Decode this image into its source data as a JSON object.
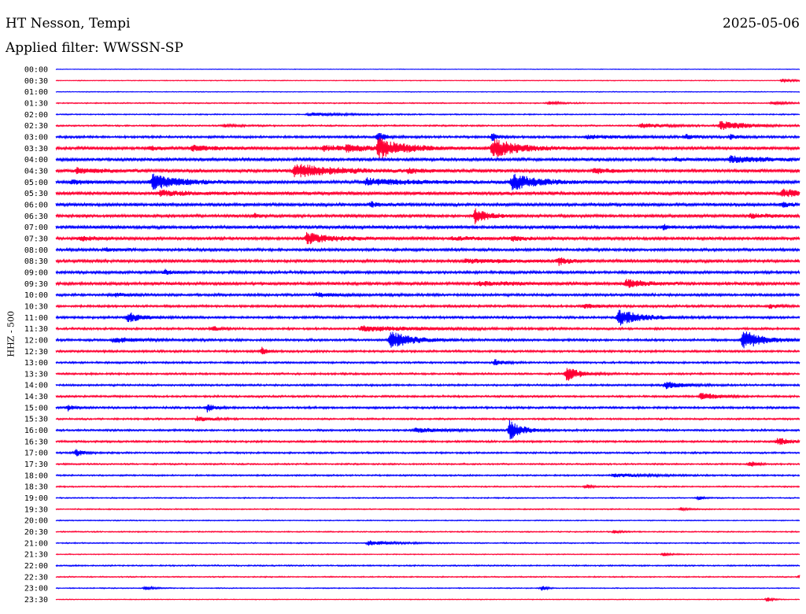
{
  "header": {
    "station": "HT Nesson, Tempi",
    "date": "2025-05-06",
    "filter": "Applied filter: WWSSN-SP"
  },
  "chart_data": {
    "type": "line",
    "title": "HT Nesson, Tempi",
    "subtitle": "Applied filter: WWSSN-SP",
    "ylabel": "HHZ - 500",
    "xlabel": "",
    "grid": false,
    "colors": {
      "even_trace": "#0000ff",
      "odd_trace": "#ff0033"
    },
    "categories": [
      "00:00",
      "00:30",
      "01:00",
      "01:30",
      "02:00",
      "02:30",
      "03:00",
      "03:30",
      "04:00",
      "04:30",
      "05:00",
      "05:30",
      "06:00",
      "06:30",
      "07:00",
      "07:30",
      "08:00",
      "08:30",
      "09:00",
      "09:30",
      "10:00",
      "10:30",
      "11:00",
      "11:30",
      "12:00",
      "12:30",
      "13:00",
      "13:30",
      "14:00",
      "14:30",
      "15:00",
      "15:30",
      "16:00",
      "16:30",
      "17:00",
      "17:30",
      "18:00",
      "18:30",
      "19:00",
      "19:30",
      "20:00",
      "20:30",
      "21:00",
      "21:30",
      "22:00",
      "22:30",
      "23:00",
      "23:30"
    ],
    "x_range_minutes": [
      0,
      30
    ],
    "trace_noise_level": [
      0.3,
      0.4,
      0.4,
      0.6,
      0.6,
      0.8,
      1.2,
      1.6,
      1.6,
      1.7,
      1.6,
      1.8,
      1.6,
      1.5,
      1.6,
      1.5,
      1.4,
      1.5,
      1.4,
      1.5,
      1.3,
      1.2,
      1.2,
      1.1,
      1.2,
      1.1,
      1.0,
      1.0,
      1.0,
      1.0,
      1.1,
      0.9,
      1.0,
      1.0,
      0.9,
      0.8,
      0.8,
      0.7,
      0.6,
      0.6,
      0.5,
      0.6,
      0.6,
      0.5,
      0.7,
      0.6,
      0.5,
      0.4
    ],
    "events": [
      [],
      [
        {
          "t": 29.3,
          "a": 2,
          "w": 0.5
        }
      ],
      [],
      [
        {
          "t": 19.9,
          "a": 2,
          "w": 0.4
        },
        {
          "t": 28.9,
          "a": 2,
          "w": 0.6
        }
      ],
      [
        {
          "t": 10.2,
          "a": 2,
          "w": 1.5
        }
      ],
      [
        {
          "t": 6.8,
          "a": 2,
          "w": 0.5
        },
        {
          "t": 23.6,
          "a": 3,
          "w": 1
        },
        {
          "t": 26.8,
          "a": 6,
          "w": 1
        }
      ],
      [
        {
          "t": 13,
          "a": 8,
          "w": 0.2
        },
        {
          "t": 17.6,
          "a": 5,
          "w": 0.2
        },
        {
          "t": 21.4,
          "a": 2,
          "w": 1.5
        },
        {
          "t": 25.4,
          "a": 3,
          "w": 0.3
        },
        {
          "t": 27.2,
          "a": 3,
          "w": 0.3
        }
      ],
      [
        {
          "t": 5.5,
          "a": 3,
          "w": 1
        },
        {
          "t": 10.8,
          "a": 3,
          "w": 1
        },
        {
          "t": 13,
          "a": 12,
          "w": 1
        },
        {
          "t": 17.6,
          "a": 12,
          "w": 1
        },
        {
          "t": 3.8,
          "a": 2,
          "w": 0.5
        },
        {
          "t": 11.7,
          "a": 3,
          "w": 1
        }
      ],
      [
        {
          "t": 27.2,
          "a": 4,
          "w": 1.5
        },
        {
          "t": 25,
          "a": 2,
          "w": 0.5
        }
      ],
      [
        {
          "t": 9.6,
          "a": 9,
          "w": 1.5
        },
        {
          "t": 0.8,
          "a": 3,
          "w": 1
        },
        {
          "t": 14.2,
          "a": 3,
          "w": 0.5
        },
        {
          "t": 21.7,
          "a": 3,
          "w": 0.6
        }
      ],
      [
        {
          "t": 3.9,
          "a": 10,
          "w": 1
        },
        {
          "t": 18.4,
          "a": 10,
          "w": 1
        },
        {
          "t": 0.6,
          "a": 3,
          "w": 0.6
        },
        {
          "t": 12.5,
          "a": 4,
          "w": 2
        }
      ],
      [
        {
          "t": 29.3,
          "a": 5,
          "w": 0.8
        },
        {
          "t": 4.2,
          "a": 3,
          "w": 1
        }
      ],
      [
        {
          "t": 12.7,
          "a": 4,
          "w": 0.2
        },
        {
          "t": 29.3,
          "a": 3,
          "w": 0.3
        }
      ],
      [
        {
          "t": 16.9,
          "a": 10,
          "w": 0.5
        },
        {
          "t": 8,
          "a": 3,
          "w": 0.2
        },
        {
          "t": 28,
          "a": 2,
          "w": 1
        }
      ],
      [
        {
          "t": 24.5,
          "a": 3,
          "w": 0.2
        }
      ],
      [
        {
          "t": 10.1,
          "a": 7,
          "w": 1
        },
        {
          "t": 1,
          "a": 3,
          "w": 0.5
        },
        {
          "t": 18.4,
          "a": 3,
          "w": 0.5
        },
        {
          "t": 16,
          "a": 2,
          "w": 1
        }
      ],
      [
        {
          "t": 2,
          "a": 2,
          "w": 0.5
        }
      ],
      [
        {
          "t": 20.3,
          "a": 5,
          "w": 0.3
        },
        {
          "t": 16.5,
          "a": 2,
          "w": 2
        }
      ],
      [
        {
          "t": 4.4,
          "a": 3,
          "w": 0.3
        }
      ],
      [
        {
          "t": 23,
          "a": 5,
          "w": 0.8
        },
        {
          "t": 17,
          "a": 2,
          "w": 2
        }
      ],
      [
        {
          "t": 2.4,
          "a": 2,
          "w": 0.5
        },
        {
          "t": 10.5,
          "a": 2,
          "w": 1
        }
      ],
      [
        {
          "t": 21.3,
          "a": 3,
          "w": 0.5
        },
        {
          "t": 28.8,
          "a": 3,
          "w": 0.3
        }
      ],
      [
        {
          "t": 22.7,
          "a": 11,
          "w": 0.8
        },
        {
          "t": 2.9,
          "a": 7,
          "w": 0.5
        }
      ],
      [
        {
          "t": 12.3,
          "a": 3,
          "w": 2.5
        },
        {
          "t": 6.3,
          "a": 3,
          "w": 0.3
        }
      ],
      [
        {
          "t": 13.5,
          "a": 12,
          "w": 0.8
        },
        {
          "t": 27.7,
          "a": 12,
          "w": 0.8
        },
        {
          "t": 2.3,
          "a": 3,
          "w": 1
        }
      ],
      [
        {
          "t": 8.3,
          "a": 5,
          "w": 0.2
        }
      ],
      [
        {
          "t": 17.7,
          "a": 4,
          "w": 0.3
        }
      ],
      [
        {
          "t": 20.6,
          "a": 9,
          "w": 0.5
        }
      ],
      [
        {
          "t": 24.6,
          "a": 5,
          "w": 0.6
        }
      ],
      [
        {
          "t": 26,
          "a": 5,
          "w": 0.6
        }
      ],
      [
        {
          "t": 6.1,
          "a": 5,
          "w": 0.3
        },
        {
          "t": 0.5,
          "a": 4,
          "w": 0.2
        }
      ],
      [
        {
          "t": 5.7,
          "a": 3,
          "w": 0.6
        }
      ],
      [
        {
          "t": 18.3,
          "a": 12,
          "w": 0.5
        },
        {
          "t": 14.5,
          "a": 3,
          "w": 1
        }
      ],
      [
        {
          "t": 29.1,
          "a": 5,
          "w": 0.5
        }
      ],
      [
        {
          "t": 0.8,
          "a": 5,
          "w": 0.3
        }
      ],
      [
        {
          "t": 28,
          "a": 4,
          "w": 0.3
        }
      ],
      [
        {
          "t": 22.5,
          "a": 2,
          "w": 1.5
        }
      ],
      [
        {
          "t": 21.4,
          "a": 3,
          "w": 0.2
        }
      ],
      [
        {
          "t": 25.9,
          "a": 3,
          "w": 0.2
        }
      ],
      [
        {
          "t": 25.2,
          "a": 2,
          "w": 0.3
        }
      ],
      [],
      [
        {
          "t": 22.5,
          "a": 2,
          "w": 0.3
        }
      ],
      [
        {
          "t": 12.6,
          "a": 3,
          "w": 1
        }
      ],
      [
        {
          "t": 24.5,
          "a": 2,
          "w": 0.3
        }
      ],
      [],
      [
        {
          "t": 30,
          "a": 3,
          "w": 0.3
        }
      ],
      [
        {
          "t": 3.6,
          "a": 3,
          "w": 0.3
        },
        {
          "t": 19.6,
          "a": 3,
          "w": 0.2
        }
      ],
      [
        {
          "t": 28.7,
          "a": 3,
          "w": 0.2
        }
      ]
    ]
  }
}
